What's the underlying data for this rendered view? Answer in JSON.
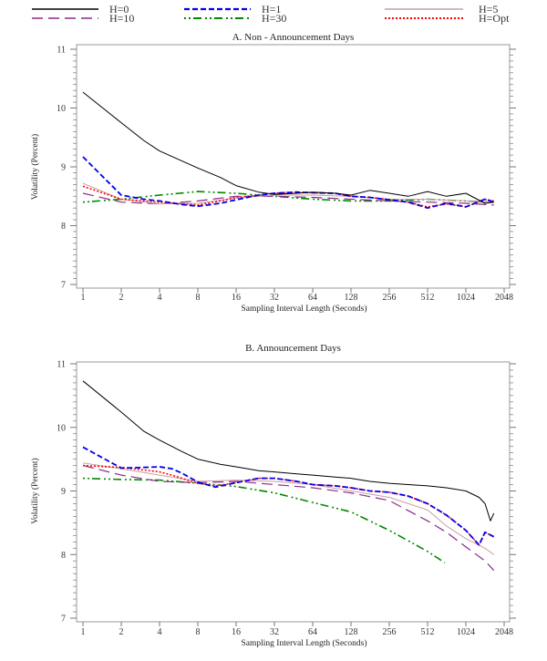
{
  "chart_data": [
    {
      "type": "line",
      "title": "A. Non - Announcement Days",
      "xlabel": "Sampling Interval Length (Seconds)",
      "ylabel": "Volatility (Percent)",
      "xscale": "log2",
      "xticks": [
        "1",
        "2",
        "4",
        "8",
        "16",
        "32",
        "64",
        "128",
        "256",
        "512",
        "1024",
        "2048"
      ],
      "xlim": [
        1,
        2048
      ],
      "yticks": [
        "7",
        "8",
        "9",
        "10",
        "11"
      ],
      "ylim": [
        7,
        11
      ],
      "grid": false,
      "series": [
        {
          "name": "H=0",
          "x": [
            1,
            2,
            3,
            4,
            6,
            8,
            12,
            16,
            24,
            32,
            48,
            64,
            96,
            128,
            180,
            256,
            360,
            512,
            720,
            1024,
            1448,
            1700
          ],
          "values": [
            10.27,
            9.75,
            9.45,
            9.27,
            9.1,
            8.98,
            8.82,
            8.68,
            8.57,
            8.53,
            8.55,
            8.57,
            8.55,
            8.52,
            8.6,
            8.55,
            8.5,
            8.58,
            8.5,
            8.55,
            8.38,
            8.4
          ]
        },
        {
          "name": "H=1",
          "x": [
            1,
            2,
            3,
            4,
            6,
            8,
            12,
            16,
            24,
            32,
            48,
            64,
            96,
            128,
            180,
            256,
            360,
            512,
            720,
            1024,
            1448,
            1700
          ],
          "values": [
            9.17,
            8.52,
            8.45,
            8.42,
            8.36,
            8.33,
            8.38,
            8.44,
            8.52,
            8.55,
            8.57,
            8.56,
            8.55,
            8.5,
            8.48,
            8.44,
            8.4,
            8.3,
            8.38,
            8.32,
            8.45,
            8.4
          ]
        },
        {
          "name": "H=5",
          "x": [
            1,
            2,
            4,
            8,
            16,
            32,
            64,
            128,
            256,
            512,
            1024,
            1700
          ],
          "values": [
            8.72,
            8.45,
            8.37,
            8.38,
            8.47,
            8.52,
            8.52,
            8.5,
            8.45,
            8.45,
            8.42,
            8.4
          ]
        },
        {
          "name": "H=10",
          "x": [
            1,
            2,
            4,
            8,
            16,
            32,
            64,
            128,
            256,
            512,
            1024,
            1700
          ],
          "values": [
            8.55,
            8.4,
            8.37,
            8.42,
            8.5,
            8.5,
            8.48,
            8.45,
            8.42,
            8.4,
            8.38,
            8.35
          ]
        },
        {
          "name": "H=30",
          "x": [
            1,
            2,
            4,
            8,
            16,
            32,
            64,
            128,
            256,
            512,
            1024,
            1700
          ],
          "values": [
            8.4,
            8.45,
            8.52,
            8.58,
            8.55,
            8.5,
            8.45,
            8.42,
            8.42,
            8.45,
            8.42,
            8.4
          ]
        },
        {
          "name": "H=Opt",
          "x": [
            1,
            2,
            3,
            4,
            6,
            8,
            12,
            16,
            24,
            32,
            48,
            64,
            96,
            128,
            180,
            256,
            360,
            512,
            720,
            1024,
            1448,
            1700
          ],
          "values": [
            8.67,
            8.45,
            8.42,
            8.4,
            8.37,
            8.35,
            8.42,
            8.48,
            8.52,
            8.55,
            8.57,
            8.56,
            8.55,
            8.5,
            8.48,
            8.44,
            8.4,
            8.32,
            8.37,
            8.32,
            8.45,
            8.42
          ]
        }
      ]
    },
    {
      "type": "line",
      "title": "B. Announcement Days",
      "xlabel": "Sampling Interval Length (Seconds)",
      "ylabel": "Volatility (Percent)",
      "xscale": "log2",
      "xticks": [
        "1",
        "2",
        "4",
        "8",
        "16",
        "32",
        "64",
        "128",
        "256",
        "512",
        "1024",
        "2048"
      ],
      "xlim": [
        1,
        2048
      ],
      "yticks": [
        "7",
        "8",
        "9",
        "10",
        "11"
      ],
      "ylim": [
        7,
        11
      ],
      "grid": false,
      "series": [
        {
          "name": "H=0",
          "x": [
            1,
            2,
            3,
            4,
            6,
            8,
            12,
            16,
            24,
            32,
            48,
            64,
            96,
            128,
            180,
            256,
            360,
            512,
            720,
            1024,
            1300,
            1448,
            1600,
            1700
          ],
          "values": [
            10.73,
            10.24,
            9.94,
            9.8,
            9.62,
            9.5,
            9.42,
            9.38,
            9.32,
            9.3,
            9.27,
            9.25,
            9.22,
            9.2,
            9.15,
            9.12,
            9.1,
            9.08,
            9.05,
            9.0,
            8.9,
            8.8,
            8.53,
            8.65
          ]
        },
        {
          "name": "H=1",
          "x": [
            1,
            2,
            3,
            4,
            5,
            6,
            8,
            11,
            16,
            24,
            32,
            48,
            64,
            96,
            128,
            180,
            256,
            360,
            512,
            720,
            1024,
            1300,
            1448,
            1700
          ],
          "values": [
            9.69,
            9.36,
            9.37,
            9.38,
            9.35,
            9.28,
            9.14,
            9.06,
            9.13,
            9.2,
            9.2,
            9.15,
            9.1,
            9.08,
            9.05,
            9.0,
            8.98,
            8.92,
            8.8,
            8.62,
            8.38,
            8.15,
            8.35,
            8.28
          ]
        },
        {
          "name": "H=5",
          "x": [
            1,
            2,
            4,
            8,
            16,
            32,
            64,
            128,
            256,
            512,
            720,
            1024,
            1448,
            1700
          ],
          "values": [
            9.44,
            9.35,
            9.25,
            9.15,
            9.17,
            9.15,
            9.1,
            9.0,
            8.9,
            8.7,
            8.45,
            8.25,
            8.1,
            8.0
          ]
        },
        {
          "name": "H=10",
          "x": [
            1,
            2,
            4,
            8,
            16,
            32,
            64,
            128,
            256,
            512,
            720,
            1024,
            1448,
            1700
          ],
          "values": [
            9.4,
            9.25,
            9.15,
            9.13,
            9.15,
            9.1,
            9.05,
            8.97,
            8.85,
            8.53,
            8.35,
            8.12,
            7.9,
            7.75
          ]
        },
        {
          "name": "H=30",
          "x": [
            1,
            2,
            4,
            8,
            16,
            32,
            64,
            128,
            256,
            512,
            700
          ],
          "values": [
            9.2,
            9.18,
            9.17,
            9.12,
            9.07,
            8.97,
            8.82,
            8.67,
            8.38,
            8.05,
            7.87
          ]
        },
        {
          "name": "H=Opt",
          "x": [
            1,
            2,
            3,
            4,
            5,
            6,
            8,
            11,
            16,
            24,
            32,
            48,
            64,
            96,
            128,
            180,
            256,
            360,
            512,
            720,
            1024,
            1300,
            1448,
            1700
          ],
          "values": [
            9.4,
            9.37,
            9.33,
            9.3,
            9.25,
            9.2,
            9.12,
            9.08,
            9.13,
            9.2,
            9.2,
            9.15,
            9.1,
            9.08,
            9.05,
            9.0,
            8.98,
            8.92,
            8.8,
            8.62,
            8.38,
            8.15,
            8.35,
            8.28
          ]
        }
      ]
    }
  ],
  "legend": {
    "placement": "top",
    "entries": [
      {
        "name": "H=0",
        "color": "#000000",
        "style": "solid"
      },
      {
        "name": "H=1",
        "color": "#0000ee",
        "style": "dashed"
      },
      {
        "name": "H=5",
        "color": "#c8a0a0",
        "style": "solid"
      },
      {
        "name": "H=10",
        "color": "#8b2a8b",
        "style": "longdash"
      },
      {
        "name": "H=30",
        "color": "#008800",
        "style": "dotdash"
      },
      {
        "name": "H=Opt",
        "color": "#ff0000",
        "style": "dotted"
      }
    ]
  }
}
